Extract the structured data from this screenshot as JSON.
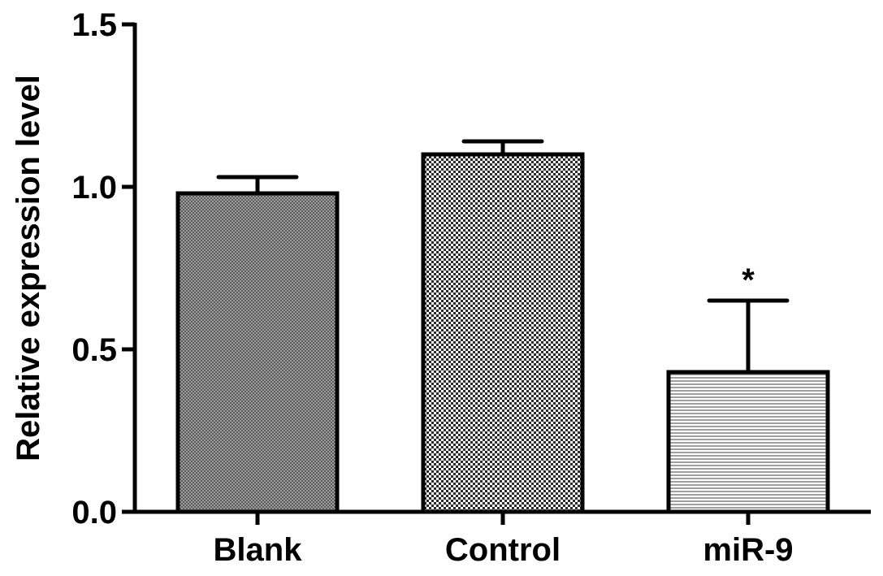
{
  "chart_data": {
    "type": "bar",
    "title": "",
    "xlabel": "",
    "ylabel": "Relative expression level",
    "ylim": [
      0,
      1.5
    ],
    "yticks": [
      "0.0",
      "0.5",
      "1.0",
      "1.5"
    ],
    "categories": [
      "Blank",
      "Control",
      "miR-9"
    ],
    "values": [
      0.98,
      1.1,
      0.43
    ],
    "error": [
      0.05,
      0.04,
      0.22
    ],
    "significance": [
      "",
      "",
      "*"
    ],
    "patterns": [
      "fine-crosshatch",
      "checker",
      "horizontal-lines"
    ],
    "grid": false,
    "legend": "none"
  }
}
